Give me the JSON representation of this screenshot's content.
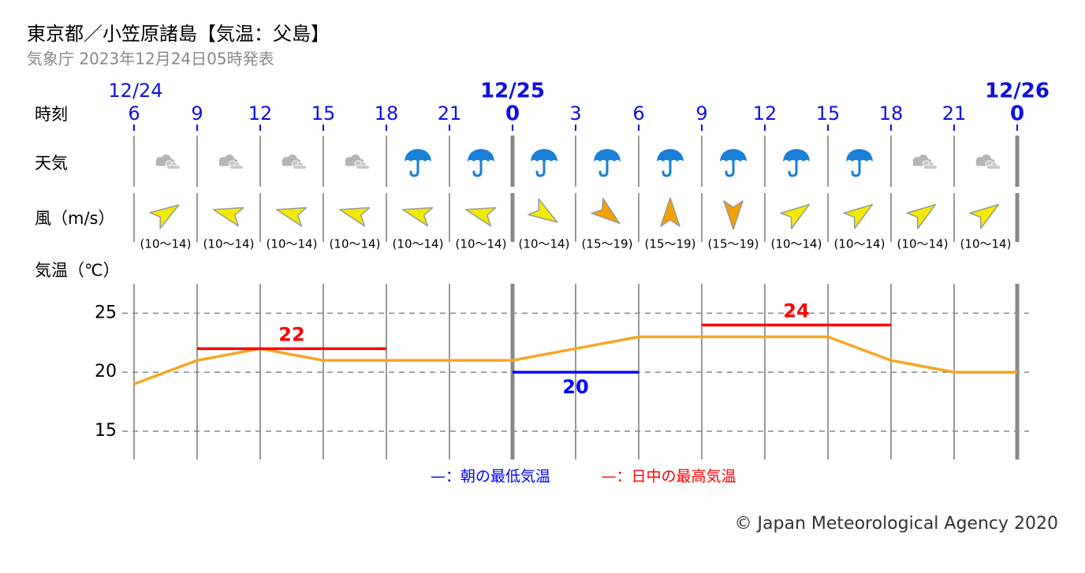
{
  "chart_data": {
    "type": "line",
    "title": "東京都／小笠原諸島【気温：父島】",
    "subtitle": "気象庁 2023年12月24日05時発表",
    "row_labels": [
      "時刻",
      "天気",
      "風（m/s）",
      "気温（℃）"
    ],
    "date_row": [
      "12/24",
      null,
      null,
      null,
      null,
      null,
      "12/25",
      null,
      null,
      null,
      null,
      null,
      null,
      null,
      "12/26"
    ],
    "categories": [
      6,
      9,
      12,
      15,
      18,
      21,
      0,
      3,
      6,
      9,
      12,
      15,
      18,
      21,
      0
    ],
    "weather": [
      "cloudy",
      "cloudy",
      "cloudy",
      "cloudy",
      "rain",
      "rain",
      "rain",
      "rain",
      "rain",
      "rain",
      "rain",
      "rain",
      "cloudy",
      "cloudy"
    ],
    "wind": {
      "speed_labels": [
        "(10〜14)",
        "(10〜14)",
        "(10〜14)",
        "(10〜14)",
        "(10〜14)",
        "(10〜14)",
        "(10〜14)",
        "(15〜19)",
        "(15〜19)",
        "(15〜19)",
        "(10〜14)",
        "(10〜14)",
        "(10〜14)",
        "(10〜14)"
      ],
      "arrow_deg": [
        57,
        285,
        285,
        285,
        285,
        285,
        123,
        128,
        0,
        180,
        55,
        55,
        55,
        55
      ],
      "colors": [
        "#f2ea00",
        "#f2ea00",
        "#f2ea00",
        "#f2ea00",
        "#f2ea00",
        "#f2ea00",
        "#f2ea00",
        "#f5a000",
        "#f5a000",
        "#f5a000",
        "#f2ea00",
        "#f2ea00",
        "#f2ea00",
        "#f2ea00"
      ]
    },
    "series": [
      {
        "name": "気温",
        "color": "#f5a623",
        "values": [
          19,
          21,
          22,
          21,
          21,
          21,
          21,
          22,
          23,
          23,
          23,
          23,
          21,
          20,
          20
        ]
      },
      {
        "name": "—：朝の最低気温",
        "color": "#0000ff",
        "values": [
          null,
          null,
          null,
          null,
          null,
          null,
          20,
          20,
          20,
          null,
          null,
          null,
          null,
          null,
          null
        ]
      },
      {
        "name": "—：日中の最高気温",
        "color": "#ff0000",
        "values": [
          null,
          22,
          22,
          22,
          22,
          null,
          null,
          null,
          null,
          24,
          24,
          24,
          24,
          null,
          null
        ]
      }
    ],
    "ylim": [
      12.6,
      27.5
    ],
    "yticks": [
      15,
      20,
      25
    ],
    "grid": true,
    "copyright": "© Japan Meteorological Agency 2020"
  }
}
